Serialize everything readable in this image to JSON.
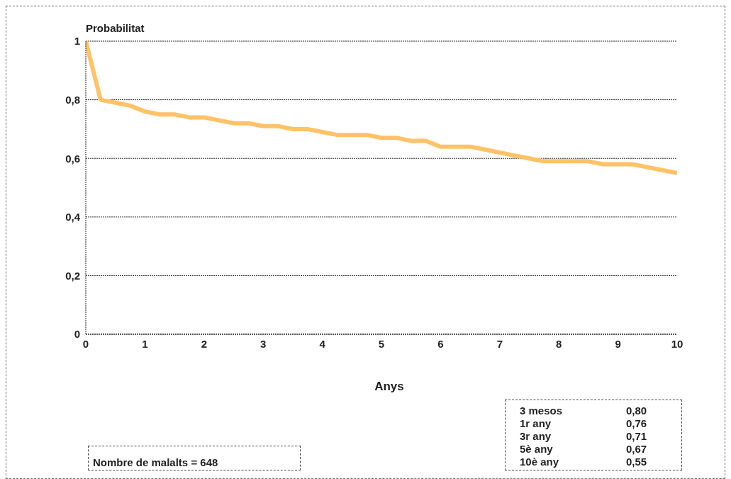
{
  "chart_data": {
    "type": "line",
    "xlabel": "Anys",
    "ylabel": "Probabilitat",
    "x": [
      0,
      0.25,
      0.5,
      0.75,
      1,
      1.25,
      1.5,
      1.75,
      2,
      2.25,
      2.5,
      2.75,
      3,
      3.25,
      3.5,
      3.75,
      4,
      4.25,
      4.5,
      4.75,
      5,
      5.25,
      5.5,
      5.75,
      6,
      6.25,
      6.5,
      6.75,
      7,
      7.25,
      7.5,
      7.75,
      8,
      8.25,
      8.5,
      8.75,
      9,
      9.25,
      9.5,
      9.75,
      10
    ],
    "series": [
      {
        "color": "#ffc266",
        "values": [
          1,
          0.8,
          0.79,
          0.78,
          0.76,
          0.75,
          0.75,
          0.74,
          0.74,
          0.73,
          0.72,
          0.72,
          0.71,
          0.71,
          0.7,
          0.7,
          0.69,
          0.68,
          0.68,
          0.68,
          0.67,
          0.67,
          0.66,
          0.66,
          0.64,
          0.64,
          0.64,
          0.63,
          0.62,
          0.61,
          0.6,
          0.59,
          0.59,
          0.59,
          0.59,
          0.58,
          0.58,
          0.58,
          0.57,
          0.56,
          0.55
        ]
      }
    ],
    "xlim": [
      0,
      10
    ],
    "xticks": [
      0,
      1,
      2,
      3,
      4,
      5,
      6,
      7,
      8,
      9,
      10
    ],
    "ylim": [
      0,
      1
    ],
    "yticks": [
      0,
      {
        "value": 0.2,
        "label": "0,2"
      },
      {
        "value": 0.4,
        "label": "0,4"
      },
      {
        "value": 0.6,
        "label": "0,6"
      },
      {
        "value": 0.8,
        "label": "0,8"
      },
      1
    ],
    "grid": "y",
    "marker": "none",
    "line_style": "solid",
    "annotations": [
      "Nombre de malalts = 648",
      "3 mesos",
      "0,80",
      "1r any",
      "0,76",
      "3r any",
      "0,71",
      "5è any",
      "0,67",
      "10è any",
      "0,55"
    ]
  }
}
